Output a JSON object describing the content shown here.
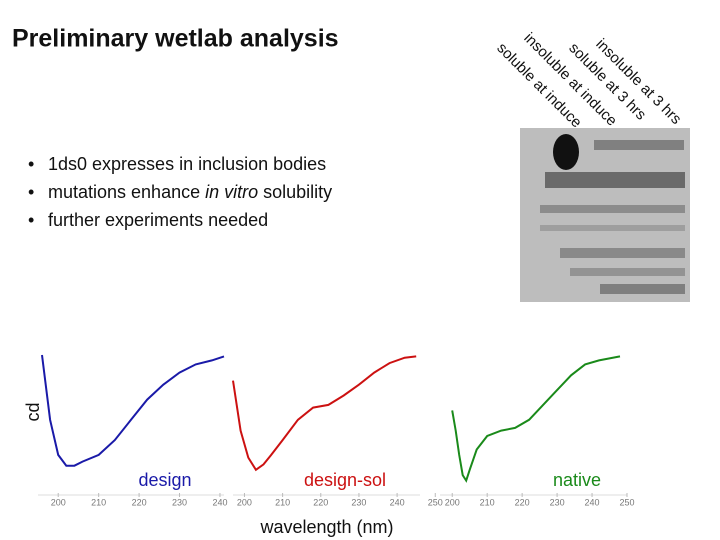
{
  "title": "Preliminary wetlab analysis",
  "bullets": [
    "1ds0 expresses in inclusion bodies",
    {
      "before": "mutations enhance",
      "italic": "in vitro",
      "after": "solubility"
    },
    "further experiments needed"
  ],
  "gel": {
    "lanes": [
      "soluble at induce",
      "insoluble at induce",
      "soluble at 3 hrs",
      "insoluble at 3 hrs"
    ]
  },
  "y_label": "cd",
  "x_label": "wavelength (nm)",
  "chart_data": [
    {
      "type": "line",
      "x": [
        196,
        198,
        200,
        202,
        204,
        206,
        210,
        214,
        218,
        222,
        226,
        230,
        234,
        238,
        241
      ],
      "series": [
        {
          "name": "design",
          "color": "#1a1aa8",
          "values": [
            100,
            52,
            26,
            18,
            18,
            21,
            26,
            37,
            52,
            67,
            78,
            87,
            93,
            96,
            99
          ]
        }
      ],
      "xlim": [
        195,
        241
      ],
      "ylim": [
        0,
        100
      ],
      "xticks": [
        200,
        210,
        220,
        230,
        240
      ]
    },
    {
      "type": "line",
      "x": [
        197,
        199,
        201,
        203,
        205,
        207,
        210,
        214,
        218,
        222,
        226,
        230,
        234,
        238,
        242,
        245
      ],
      "series": [
        {
          "name": "design-sol",
          "color": "#cc1111",
          "values": [
            81,
            44,
            24,
            15,
            19,
            26,
            37,
            52,
            61,
            63,
            70,
            78,
            87,
            94,
            98,
            99
          ]
        }
      ],
      "xlim": [
        197,
        246
      ],
      "ylim": [
        0,
        100
      ],
      "xticks": [
        200,
        210,
        220,
        230,
        240,
        250
      ]
    },
    {
      "type": "line",
      "x": [
        200,
        201,
        202,
        203,
        204,
        205,
        207,
        210,
        214,
        218,
        222,
        226,
        230,
        234,
        238,
        242,
        248
      ],
      "series": [
        {
          "name": "native",
          "color": "#1a8a1a",
          "values": [
            59,
            44,
            26,
            11,
            7,
            15,
            30,
            40,
            44,
            46,
            52,
            63,
            74,
            85,
            93,
            96,
            99
          ]
        }
      ],
      "xlim": [
        196.5,
        250
      ],
      "ylim": [
        0,
        100
      ],
      "xticks": [
        200,
        210,
        220,
        230,
        240,
        250
      ]
    }
  ]
}
